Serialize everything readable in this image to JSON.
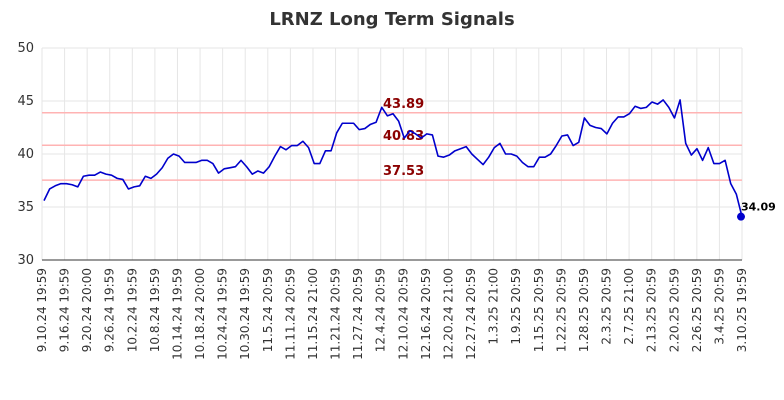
{
  "chart_data": {
    "type": "line",
    "title": "LRNZ Long Term Signals",
    "xlabel": "",
    "ylabel": "",
    "ylim": [
      30,
      50
    ],
    "yticks": [
      30,
      35,
      40,
      45,
      50
    ],
    "grid": true,
    "xtick_labels": [
      "9.10.24 19:59",
      "9.16.24 19:59",
      "9.20.24 20:00",
      "9.26.24 19:59",
      "10.2.24 19:59",
      "10.8.24 19:59",
      "10.14.24 19:59",
      "10.18.24 20:00",
      "10.24.24 19:59",
      "10.30.24 19:59",
      "11.5.24 20:59",
      "11.11.24 20:59",
      "11.15.24 21:00",
      "11.21.24 20:59",
      "11.27.24 20:59",
      "12.4.24 20:59",
      "12.10.24 20:59",
      "12.16.24 20:59",
      "12.20.24 21:00",
      "12.27.24 20:59",
      "1.3.25 21:00",
      "1.9.25 20:59",
      "1.15.25 20:59",
      "1.22.25 20:59",
      "1.28.25 20:59",
      "2.3.25 20:59",
      "2.7.25 21:00",
      "2.13.25 20:59",
      "2.20.25 20:59",
      "2.26.25 20:59",
      "3.4.25 20:59",
      "3.10.25 19:59"
    ],
    "series": [
      {
        "color": "#0000cc",
        "values": [
          35.6,
          36.7,
          37.0,
          37.2,
          37.2,
          37.1,
          36.9,
          37.9,
          38.0,
          38.0,
          38.3,
          38.1,
          38.0,
          37.7,
          37.6,
          36.7,
          36.9,
          37.0,
          37.9,
          37.7,
          38.1,
          38.7,
          39.6,
          40.0,
          39.8,
          39.2,
          39.2,
          39.2,
          39.4,
          39.4,
          39.1,
          38.2,
          38.6,
          38.7,
          38.8,
          39.4,
          38.8,
          38.1,
          38.4,
          38.2,
          38.8,
          39.8,
          40.7,
          40.4,
          40.8,
          40.8,
          41.2,
          40.6,
          39.1,
          39.1,
          40.3,
          40.3,
          42.0,
          42.9,
          42.9,
          42.9,
          42.3,
          42.4,
          42.8,
          43.0,
          44.4,
          43.6,
          43.8,
          43.1,
          41.5,
          42.2,
          41.9,
          41.5,
          41.9,
          41.8,
          39.8,
          39.7,
          39.9,
          40.3,
          40.5,
          40.7,
          40.0,
          39.5,
          39.0,
          39.7,
          40.6,
          41.0,
          40.0,
          40.0,
          39.8,
          39.2,
          38.8,
          38.8,
          39.7,
          39.7,
          40.0,
          40.8,
          41.7,
          41.8,
          40.8,
          41.1,
          43.4,
          42.7,
          42.5,
          42.4,
          41.9,
          42.9,
          43.5,
          43.5,
          43.8,
          44.5,
          44.3,
          44.4,
          44.9,
          44.7,
          45.1,
          44.4,
          43.4,
          45.1,
          41.0,
          39.9,
          40.5,
          39.4,
          40.6,
          39.1,
          39.1,
          39.4,
          37.2,
          36.2,
          34.09
        ]
      }
    ],
    "levels": [
      {
        "value": 43.89,
        "label": "43.89",
        "color": "#ffb3b3"
      },
      {
        "value": 40.83,
        "label": "40.83",
        "color": "#ffb3b3"
      },
      {
        "value": 37.53,
        "label": "37.53",
        "color": "#ffb3b3"
      }
    ],
    "last_point": {
      "value": 34.09,
      "label": "34.09"
    }
  }
}
